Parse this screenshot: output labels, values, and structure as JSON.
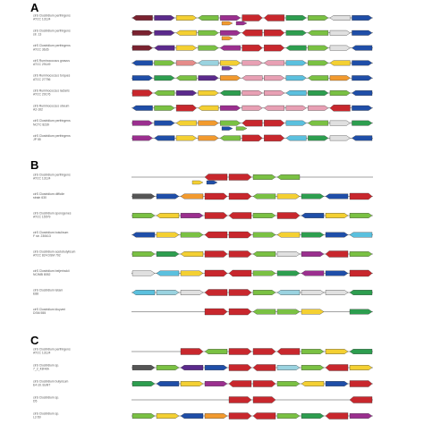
{
  "figure": {
    "background": "#ffffff",
    "centered_gene_color": "#c8272d",
    "panels": [
      {
        "letter": "A",
        "rows": [
          {
            "label": [
              "clrS Clostridium perfringens",
              "ATCC 13124"
            ],
            "genes": [
              "#7a2230",
              "#5b2a8c",
              "#f4d032",
              "#7ac143",
              "#9b2f8f",
              "#c8272d",
              "#c8272d",
              "#2d9e4f",
              "#7ac143",
              "#e0e0e0",
              "#1f4ea8"
            ],
            "extras": [
              "#f29a2e",
              "#9b2f8f"
            ]
          },
          {
            "label": [
              "clrS Clostridium perfringens",
              "str. 13"
            ],
            "genes": [
              "#7a2230",
              "#5b2a8c",
              "#f4d032",
              "#7ac143",
              "#9b2f8f",
              "#c8272d",
              "#c8272d",
              "#2d9e4f",
              "#7ac143",
              "#e0e0e0",
              "#1f4ea8"
            ],
            "extras": [
              "#f29a2e"
            ]
          },
          {
            "label": [
              "clrS Clostridium perfringens",
              "ATCC 3626"
            ],
            "genes": [
              "#7a2230",
              "#5b2a8c",
              "#f4d032",
              "#7ac143",
              "#9b2f8f",
              "#c8272d",
              "#c8272d",
              "#2d9e4f",
              "#7ac143",
              "#e0e0e0",
              "#1f4ea8"
            ],
            "extras": []
          },
          {
            "label": [
              "clrS Ruminococcus gnavus",
              "ATCC 29149"
            ],
            "genes": [
              "#1f4ea8",
              "#7ac143",
              "#e58c8a",
              "#9ad3e0",
              "#f4d032",
              "#e8a0b4",
              "#e8a0b4",
              "#5bc0de",
              "#7ac143",
              "#f4d032",
              "#1f4ea8"
            ],
            "extras": [
              "#6b3fa0"
            ]
          },
          {
            "label": [
              "clrS Ruminococcus torques",
              "ATCC 27756"
            ],
            "genes": [
              "#1f4ea8",
              "#2d9e4f",
              "#7ac143",
              "#5b2a8c",
              "#f29a2e",
              "#e8a0b4",
              "#e8a0b4",
              "#5bc0de",
              "#7ac143",
              "#f29a2e",
              "#1f4ea8"
            ],
            "extras": []
          },
          {
            "label": [
              "clrS Ruminococcus lactaris",
              "ATCC 29176"
            ],
            "genes": [
              "#c8272d",
              "#7ac143",
              "#5b2a8c",
              "#f4d032",
              "#2d9e4f",
              "#e8a0b4",
              "#e8a0b4",
              "#5bc0de",
              "#2d9e4f",
              "#7ac143",
              "#1f4ea8"
            ],
            "extras": []
          },
          {
            "label": [
              "clrS Ruminococcus obeum",
              "A2-162"
            ],
            "genes": [
              "#1f4ea8",
              "#7ac143",
              "#c8272d",
              "#f4d032",
              "#9b2f8f",
              "#e8a0b4",
              "#e8a0b4",
              "#e8a0b4",
              "#e8a0b4",
              "#c8272d",
              "#1f4ea8"
            ],
            "extras": []
          },
          {
            "label": [
              "clrS Clostridium perfringens",
              "NCTC 8239"
            ],
            "genes": [
              "#9b2f8f",
              "#1f4ea8",
              "#f4d032",
              "#f29a2e",
              "#7ac143",
              "#c8272d",
              "#c8272d",
              "#5bc0de",
              "#7ac143",
              "#e0e0e0",
              "#2d9e4f"
            ],
            "extras": [
              "#1f4ea8",
              "#7ac143"
            ]
          },
          {
            "label": [
              "clrS Clostridium perfringens",
              "JP 55"
            ],
            "genes": [
              "#9b2f8f",
              "#1f4ea8",
              "#f4d032",
              "#f29a2e",
              "#7ac143",
              "#c8272d",
              "#c8272d",
              "#5bc0de",
              "#2d9e4f",
              "#e0e0e0",
              "#1f4ea8"
            ],
            "extras": []
          }
        ]
      },
      {
        "letter": "B",
        "rows": [
          {
            "label": [
              "clrS Clostridium perfringens",
              "ATCC 13124"
            ],
            "genes": [
              "#ffffff",
              "#ffffff",
              "#ffffff",
              "#c8272d",
              "#c8272d",
              "#7ac143",
              "#7ac143",
              "#ffffff",
              "#ffffff",
              "#ffffff"
            ],
            "extras": [
              "#f4d032",
              "#1f4ea8"
            ]
          },
          {
            "label": [
              "clrS Clostridium difficile",
              "strain 630"
            ],
            "genes": [
              "#555555",
              "#1f4ea8",
              "#f29a2e",
              "#c8272d",
              "#c8272d",
              "#7ac143",
              "#f4d032",
              "#2d9e4f",
              "#1f4ea8",
              "#c8272d"
            ],
            "extras": []
          },
          {
            "label": [
              "clrS Clostridium sporogenes",
              "ATCC 15579"
            ],
            "genes": [
              "#7ac143",
              "#f4d032",
              "#9b2f8f",
              "#c8272d",
              "#c8272d",
              "#7ac143",
              "#c8272d",
              "#1f4ea8",
              "#f4d032",
              "#7ac143"
            ],
            "extras": []
          },
          {
            "label": [
              "clrS Clostridium botulinum",
              "F str. 230613"
            ],
            "genes": [
              "#1f4ea8",
              "#f4d032",
              "#7ac143",
              "#c8272d",
              "#c8272d",
              "#7ac143",
              "#f4d032",
              "#2d9e4f",
              "#1f4ea8",
              "#5bc0de"
            ],
            "extras": []
          },
          {
            "label": [
              "clrS Clostridium acetobutylicum",
              "ATCC 824 DSM 792"
            ],
            "genes": [
              "#7ac143",
              "#2d9e4f",
              "#f4d032",
              "#c8272d",
              "#c8272d",
              "#7ac143",
              "#e0e0e0",
              "#9b2f8f",
              "#c8272d",
              "#7ac143"
            ],
            "extras": []
          },
          {
            "label": [
              "clrS Clostridium beijerinckii",
              "NCIMB 8052"
            ],
            "genes": [
              "#e0e0e0",
              "#5bc0de",
              "#f4d032",
              "#c8272d",
              "#c8272d",
              "#7ac143",
              "#2d9e4f",
              "#9b2f8f",
              "#1f4ea8",
              "#c8272d"
            ],
            "extras": []
          },
          {
            "label": [
              "clrS Clostridium tetani",
              "E88"
            ],
            "genes": [
              "#5bc0de",
              "#9ad3e0",
              "#e0e0e0",
              "#c8272d",
              "#c8272d",
              "#7ac143",
              "#9ad3e0",
              "#e0e0e0",
              "#e0e0e0",
              "#2d9e4f"
            ],
            "extras": []
          },
          {
            "label": [
              "clrS Clostridium kluyveri",
              "DSM 555"
            ],
            "genes": [
              "#ffffff",
              "#ffffff",
              "#ffffff",
              "#c8272d",
              "#c8272d",
              "#7ac143",
              "#7ac143",
              "#f4d032",
              "#ffffff",
              "#2d9e4f"
            ],
            "extras": []
          }
        ]
      },
      {
        "letter": "C",
        "rows": [
          {
            "label": [
              "clrS Clostridium perfringens",
              "ATCC 13124"
            ],
            "genes": [
              "#ffffff",
              "#ffffff",
              "#c8272d",
              "#7ac143",
              "#c8272d",
              "#c8272d",
              "#c8272d",
              "#7ac143",
              "#f4d032",
              "#2d9e4f"
            ],
            "extras": []
          },
          {
            "label": [
              "clrS Clostridium sp.",
              "7_2_43FAA"
            ],
            "genes": [
              "#555555",
              "#7ac143",
              "#5b2a8c",
              "#1f4ea8",
              "#c8272d",
              "#c8272d",
              "#9ad3e0",
              "#7ac143",
              "#c8272d",
              "#f4d032"
            ],
            "extras": []
          },
          {
            "label": [
              "clrS Clostridium butyricum",
              "E4 str. BoNT"
            ],
            "genes": [
              "#2d9e4f",
              "#1f4ea8",
              "#f4d032",
              "#9b2f8f",
              "#c8272d",
              "#c8272d",
              "#7ac143",
              "#f4d032",
              "#1f4ea8",
              "#c8272d"
            ],
            "extras": []
          },
          {
            "label": [
              "clrS Clostridium sp.",
              "D5"
            ],
            "genes": [
              "#ffffff",
              "#ffffff",
              "#ffffff",
              "#ffffff",
              "#c8272d",
              "#c8272d",
              "#ffffff",
              "#ffffff",
              "#ffffff",
              "#c8272d"
            ],
            "extras": []
          },
          {
            "label": [
              "clrS Clostridium sp.",
              "L2-50"
            ],
            "genes": [
              "#7ac143",
              "#f4d032",
              "#1f4ea8",
              "#f29a2e",
              "#c8272d",
              "#c8272d",
              "#7ac143",
              "#2d9e4f",
              "#c8272d",
              "#9b2f8f"
            ],
            "extras": []
          }
        ]
      }
    ]
  }
}
